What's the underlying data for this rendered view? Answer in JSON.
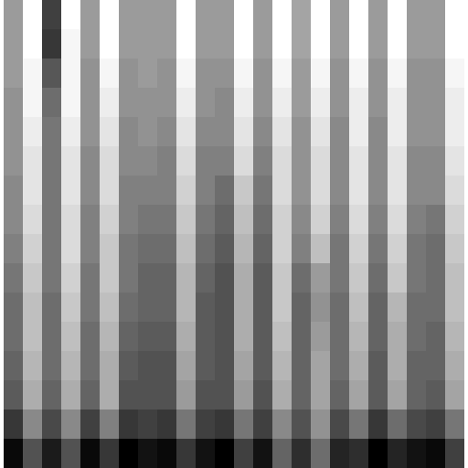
{
  "chart_data": {
    "type": "heatmap",
    "tick_labels": false,
    "cells": [
      [
        40,
        18,
        60,
        18,
        40,
        18,
        40,
        40,
        40,
        18,
        40,
        40,
        18,
        40,
        18,
        38,
        18,
        40,
        18,
        40,
        18,
        40,
        40,
        18
      ],
      [
        40,
        18,
        62,
        20,
        40,
        18,
        40,
        40,
        40,
        18,
        40,
        40,
        18,
        40,
        18,
        38,
        18,
        40,
        18,
        40,
        18,
        40,
        40,
        18
      ],
      [
        40,
        20,
        55,
        20,
        42,
        20,
        42,
        40,
        42,
        20,
        42,
        42,
        20,
        42,
        20,
        40,
        20,
        42,
        20,
        42,
        20,
        42,
        42,
        20
      ],
      [
        42,
        20,
        50,
        20,
        42,
        22,
        42,
        42,
        42,
        22,
        42,
        44,
        22,
        42,
        22,
        40,
        22,
        42,
        22,
        42,
        22,
        42,
        42,
        22
      ],
      [
        42,
        22,
        48,
        22,
        42,
        24,
        44,
        42,
        44,
        24,
        44,
        44,
        24,
        44,
        24,
        42,
        24,
        44,
        22,
        44,
        22,
        42,
        42,
        22
      ],
      [
        42,
        24,
        48,
        24,
        44,
        26,
        44,
        44,
        46,
        26,
        46,
        46,
        26,
        46,
        26,
        42,
        26,
        44,
        24,
        44,
        24,
        44,
        44,
        24
      ],
      [
        44,
        24,
        48,
        24,
        44,
        26,
        46,
        46,
        46,
        28,
        46,
        50,
        30,
        48,
        26,
        42,
        26,
        44,
        24,
        44,
        24,
        44,
        44,
        26
      ],
      [
        44,
        26,
        48,
        26,
        46,
        28,
        46,
        48,
        48,
        30,
        48,
        52,
        32,
        50,
        28,
        44,
        28,
        46,
        26,
        46,
        26,
        46,
        48,
        28
      ],
      [
        46,
        28,
        48,
        26,
        46,
        30,
        48,
        50,
        50,
        32,
        50,
        54,
        34,
        52,
        28,
        46,
        32,
        48,
        28,
        48,
        28,
        48,
        50,
        30
      ],
      [
        48,
        30,
        48,
        28,
        48,
        30,
        48,
        52,
        52,
        34,
        52,
        56,
        36,
        54,
        30,
        50,
        40,
        48,
        30,
        50,
        30,
        48,
        50,
        32
      ],
      [
        50,
        32,
        50,
        30,
        48,
        32,
        50,
        52,
        52,
        34,
        54,
        56,
        36,
        54,
        30,
        52,
        42,
        50,
        32,
        52,
        34,
        50,
        50,
        32
      ],
      [
        50,
        32,
        50,
        32,
        50,
        34,
        52,
        54,
        54,
        36,
        54,
        56,
        36,
        54,
        32,
        52,
        40,
        50,
        34,
        52,
        36,
        50,
        52,
        34
      ],
      [
        52,
        34,
        50,
        34,
        50,
        36,
        54,
        56,
        56,
        38,
        54,
        56,
        38,
        54,
        34,
        52,
        38,
        50,
        36,
        54,
        36,
        52,
        52,
        36
      ],
      [
        54,
        36,
        52,
        36,
        52,
        36,
        56,
        56,
        56,
        40,
        56,
        56,
        40,
        56,
        36,
        52,
        38,
        52,
        38,
        54,
        38,
        52,
        54,
        38
      ],
      [
        62,
        44,
        58,
        44,
        60,
        46,
        62,
        60,
        62,
        48,
        60,
        62,
        48,
        60,
        44,
        56,
        42,
        58,
        48,
        62,
        50,
        58,
        60,
        48
      ],
      [
        72,
        56,
        68,
        56,
        72,
        62,
        74,
        70,
        72,
        62,
        70,
        74,
        60,
        70,
        52,
        64,
        50,
        66,
        64,
        74,
        66,
        70,
        72,
        60
      ]
    ]
  }
}
